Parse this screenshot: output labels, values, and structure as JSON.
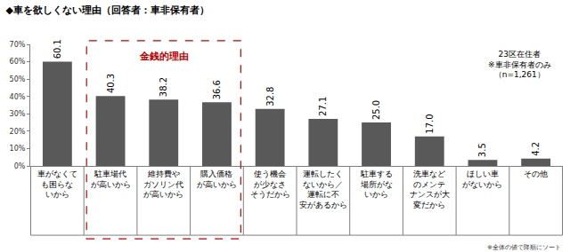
{
  "chart_data": {
    "type": "bar",
    "title": "◆車を欲しくない理由（回答者：車非保有者）",
    "categories": [
      "車がなくて\nも困らな\nいから",
      "駐車場代\nが高いから",
      "維持費や\nガソリン代\nが高いから",
      "購入価格\nが高いから",
      "使う機会\nが少なさ\nそうだから",
      "運転したく\nないから／\n運転に不\n安があるから",
      "駐車する\n場所がな\nいから",
      "洗車など\nのメンテ\nナンスが大\n変だから",
      "ほしい車\nがないから",
      "その他"
    ],
    "values": [
      60.1,
      40.3,
      38.2,
      36.6,
      32.8,
      27.1,
      25.0,
      17.0,
      3.5,
      4.2
    ],
    "value_labels": [
      "60.1",
      "40.3",
      "38.2",
      "36.6",
      "32.8",
      "27.1",
      "25.0",
      "17.0",
      "3.5",
      "4.2"
    ],
    "data_labels": true,
    "color": "#595959",
    "ylim": [
      0,
      70
    ],
    "yticks": [
      {
        "value": 0,
        "label": "0%"
      },
      {
        "value": 10,
        "label": "10%"
      },
      {
        "value": 20,
        "label": "20%"
      },
      {
        "value": 30,
        "label": "30%"
      },
      {
        "value": 40,
        "label": "40%"
      },
      {
        "value": 50,
        "label": "50%"
      },
      {
        "value": 60,
        "label": "60%"
      },
      {
        "value": 70,
        "label": "70%"
      }
    ],
    "grid": false,
    "annotations": [
      "金銭的理由",
      "23区在住者",
      "※車非保有者のみ",
      "（n=1,261）",
      "※全体の値で降順にソート"
    ]
  }
}
